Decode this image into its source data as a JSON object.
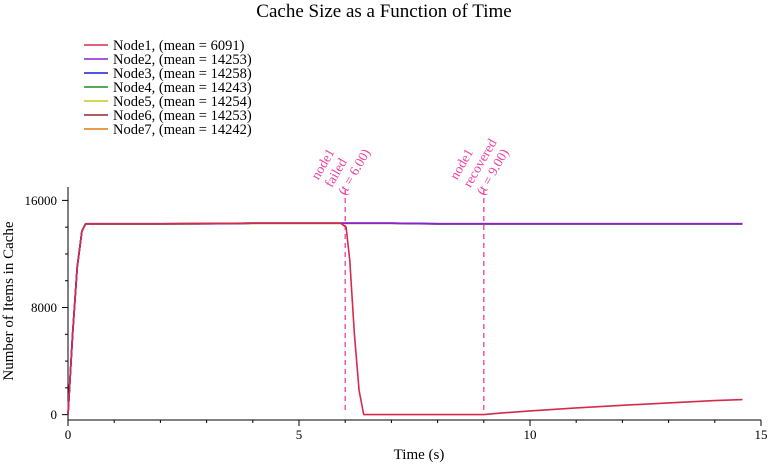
{
  "chart_data": {
    "type": "line",
    "title": "Cache Size as a Function of Time",
    "xlabel": "Time (s)",
    "ylabel": "Number of Items in Cache",
    "xlim": [
      0,
      15
    ],
    "ylim": [
      -400,
      17000
    ],
    "x_ticks": [
      0,
      5,
      10,
      15
    ],
    "x_tick_labels": [
      "0",
      "5",
      "10",
      "15"
    ],
    "y_ticks": [
      0,
      8000,
      16000
    ],
    "y_tick_labels": [
      "0",
      "8000",
      "16000"
    ],
    "legend_placement": "top-left",
    "grid": false,
    "series": [
      {
        "name": "Node1, (mean = 6091)",
        "color": "#d62a4d",
        "x": [
          0,
          0.1,
          0.2,
          0.3,
          0.38,
          1,
          2,
          3,
          4,
          5,
          5.9,
          6.02,
          6.1,
          6.2,
          6.3,
          6.4,
          6.5,
          7,
          8,
          9,
          9.3,
          10,
          11,
          12,
          13,
          14,
          14.6
        ],
        "y": [
          0,
          6000,
          11000,
          13700,
          14253,
          14253,
          14253,
          14280,
          14300,
          14300,
          14300,
          14000,
          11500,
          6000,
          1800,
          0,
          0,
          0,
          0,
          0,
          100,
          280,
          500,
          700,
          880,
          1050,
          1120
        ]
      },
      {
        "name": "Node2, (mean = 14253)",
        "color": "#8f1fcf",
        "x": [
          0,
          0.1,
          0.2,
          0.3,
          0.38,
          1,
          2,
          3,
          4,
          5,
          6,
          7,
          8,
          9,
          10,
          11,
          12,
          13,
          14,
          14.6
        ],
        "y": [
          0,
          6000,
          11000,
          13700,
          14253,
          14253,
          14253,
          14260,
          14300,
          14300,
          14300,
          14300,
          14253,
          14253,
          14253,
          14253,
          14253,
          14253,
          14253,
          14253
        ]
      },
      {
        "name": "Node3, (mean = 14258)",
        "color": "#1a1ad6",
        "x": [
          0,
          0.1,
          0.2,
          0.3,
          0.38,
          1,
          2,
          3,
          4,
          5,
          6,
          7,
          8,
          9,
          10,
          11,
          12,
          13,
          14,
          14.6
        ],
        "y": [
          0,
          6000,
          11000,
          13700,
          14258,
          14258,
          14258,
          14265,
          14300,
          14300,
          14300,
          14300,
          14258,
          14258,
          14258,
          14258,
          14258,
          14258,
          14258,
          14258
        ]
      },
      {
        "name": "Node4, (mean = 14243)",
        "color": "#1f8f1f",
        "x": [
          0,
          0.1,
          0.2,
          0.3,
          0.38,
          1,
          2,
          3,
          4,
          5,
          6,
          7,
          8,
          9,
          10,
          11,
          12,
          13,
          14,
          14.6
        ],
        "y": [
          0,
          6000,
          11000,
          13700,
          14243,
          14243,
          14243,
          14250,
          14290,
          14290,
          14290,
          14290,
          14243,
          14243,
          14243,
          14243,
          14243,
          14243,
          14243,
          14243
        ]
      },
      {
        "name": "Node5, (mean = 14254)",
        "color": "#c8c81a",
        "x": [
          0,
          0.1,
          0.2,
          0.3,
          0.38,
          1,
          2,
          3,
          4,
          5,
          6,
          7,
          8,
          9,
          10,
          11,
          12,
          13,
          14,
          14.6
        ],
        "y": [
          0,
          6000,
          11000,
          13700,
          14254,
          14254,
          14254,
          14260,
          14300,
          14300,
          14300,
          14300,
          14254,
          14254,
          14254,
          14254,
          14254,
          14254,
          14254,
          14254
        ]
      },
      {
        "name": "Node6, (mean = 14253)",
        "color": "#8b2a2a",
        "x": [
          0,
          0.1,
          0.2,
          0.3,
          0.38,
          1,
          2,
          3,
          4,
          5,
          6,
          7,
          8,
          9,
          10,
          11,
          12,
          13,
          14,
          14.6
        ],
        "y": [
          0,
          6000,
          11000,
          13700,
          14253,
          14253,
          14253,
          14260,
          14300,
          14300,
          14300,
          14300,
          14253,
          14253,
          14253,
          14253,
          14253,
          14253,
          14253,
          14253
        ]
      },
      {
        "name": "Node7, (mean = 14242)",
        "color": "#e07a10",
        "x": [
          0,
          0.1,
          0.2,
          0.3,
          0.38,
          1,
          2,
          3,
          4,
          5,
          6,
          7,
          8,
          9,
          10,
          11,
          12,
          13,
          14,
          14.6
        ],
        "y": [
          0,
          6000,
          11000,
          13700,
          14242,
          14242,
          14242,
          14250,
          14290,
          14290,
          14290,
          14290,
          14242,
          14242,
          14242,
          14242,
          14242,
          14242,
          14242,
          14242
        ]
      }
    ],
    "annotations": [
      {
        "x": 6.0,
        "lines": [
          "node1",
          "failed",
          "(t = 6.00)"
        ],
        "color": "#ee3ea0"
      },
      {
        "x": 9.0,
        "lines": [
          "node1",
          "recovered",
          "(t = 9.00)"
        ],
        "color": "#ee3ea0"
      }
    ]
  }
}
